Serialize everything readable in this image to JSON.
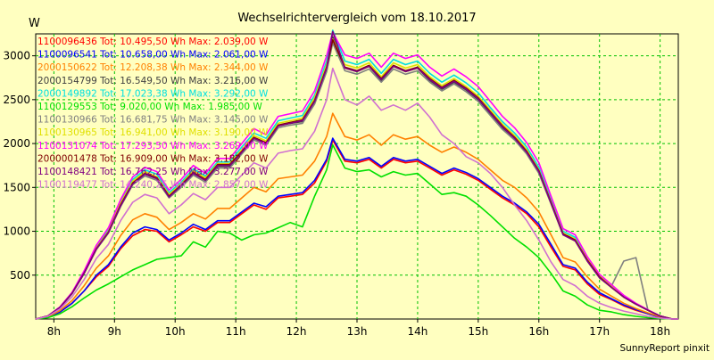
{
  "chart_data": {
    "type": "line",
    "title": "Wechselrichtervergleich vom 18.10.2017",
    "ylabel": "W",
    "xlabel": "",
    "footer": "SunnyReport pinxit",
    "ylim": [
      0,
      3250
    ],
    "xlim": [
      7.7,
      18.3
    ],
    "yticks": [
      500,
      1000,
      1500,
      2000,
      2500,
      3000
    ],
    "xticks": [
      8,
      9,
      10,
      11,
      12,
      13,
      14,
      15,
      16,
      17,
      18
    ],
    "xticklabels": [
      "8h",
      "9h",
      "10h",
      "11h",
      "12h",
      "13h",
      "14h",
      "15h",
      "16h",
      "17h",
      "18h"
    ],
    "grid": true,
    "legend_position": "top-left",
    "x": [
      7.7,
      7.9,
      8.1,
      8.3,
      8.5,
      8.7,
      8.9,
      9.1,
      9.3,
      9.5,
      9.7,
      9.9,
      10.1,
      10.3,
      10.5,
      10.7,
      10.9,
      11.1,
      11.3,
      11.5,
      11.7,
      11.9,
      12.1,
      12.3,
      12.5,
      12.6,
      12.8,
      13.0,
      13.2,
      13.4,
      13.6,
      13.8,
      14.0,
      14.2,
      14.4,
      14.6,
      14.8,
      15.0,
      15.2,
      15.4,
      15.6,
      15.8,
      16.0,
      16.2,
      16.4,
      16.6,
      16.8,
      17.0,
      17.2,
      17.4,
      17.6,
      17.8,
      18.0,
      18.2,
      18.3
    ],
    "series": [
      {
        "name": "1100096436 Tot: 10.495,50 Wh Max: 2.039,00 W",
        "color": "#ff0000",
        "values": [
          0,
          20,
          80,
          180,
          320,
          480,
          600,
          800,
          950,
          1020,
          1000,
          880,
          960,
          1050,
          1000,
          1100,
          1100,
          1200,
          1300,
          1250,
          1380,
          1400,
          1420,
          1550,
          1800,
          2039,
          1800,
          1780,
          1820,
          1720,
          1820,
          1780,
          1800,
          1720,
          1640,
          1700,
          1650,
          1580,
          1480,
          1380,
          1300,
          1200,
          1050,
          820,
          600,
          560,
          400,
          280,
          220,
          150,
          100,
          60,
          20,
          0,
          0
        ]
      },
      {
        "name": "1100096541 Tot: 10.658,00 Wh Max: 2.061,00 W",
        "color": "#0000ff",
        "values": [
          0,
          20,
          80,
          180,
          320,
          500,
          620,
          820,
          980,
          1050,
          1020,
          900,
          980,
          1080,
          1020,
          1120,
          1120,
          1220,
          1320,
          1280,
          1400,
          1420,
          1440,
          1580,
          1820,
          2061,
          1820,
          1800,
          1840,
          1740,
          1840,
          1800,
          1820,
          1740,
          1660,
          1720,
          1670,
          1600,
          1500,
          1400,
          1320,
          1220,
          1080,
          850,
          620,
          580,
          420,
          300,
          230,
          160,
          110,
          60,
          20,
          0,
          0
        ]
      },
      {
        "name": "2000150622 Tot: 12.208,38 Wh Max: 2.344,00 W",
        "color": "#ff8000",
        "values": [
          0,
          25,
          95,
          210,
          380,
          580,
          720,
          950,
          1130,
          1200,
          1160,
          1020,
          1100,
          1200,
          1140,
          1260,
          1260,
          1380,
          1500,
          1450,
          1600,
          1620,
          1640,
          1800,
          2080,
          2344,
          2080,
          2040,
          2100,
          1980,
          2100,
          2050,
          2080,
          1980,
          1900,
          1960,
          1900,
          1820,
          1700,
          1580,
          1500,
          1380,
          1220,
          960,
          700,
          650,
          480,
          340,
          260,
          180,
          120,
          70,
          25,
          0,
          0
        ]
      },
      {
        "name": "2000154799 Tot: 16.549,50 Wh Max: 3.216,00 W",
        "color": "#404040",
        "values": [
          0,
          35,
          130,
          290,
          520,
          800,
          990,
          1300,
          1550,
          1650,
          1600,
          1400,
          1520,
          1660,
          1580,
          1740,
          1740,
          1900,
          2060,
          2000,
          2200,
          2230,
          2250,
          2480,
          2860,
          3216,
          2860,
          2820,
          2880,
          2720,
          2880,
          2820,
          2860,
          2720,
          2620,
          2700,
          2610,
          2500,
          2340,
          2180,
          2060,
          1900,
          1680,
          1320,
          970,
          900,
          660,
          470,
          360,
          250,
          170,
          100,
          35,
          0,
          0
        ]
      },
      {
        "name": "2000149892 Tot: 17.023,38 Wh Max: 3.292,00 W",
        "color": "#00e0e0",
        "values": [
          0,
          35,
          135,
          300,
          540,
          830,
          1020,
          1340,
          1590,
          1700,
          1650,
          1440,
          1560,
          1710,
          1630,
          1790,
          1790,
          1960,
          2120,
          2060,
          2260,
          2290,
          2320,
          2550,
          2940,
          3292,
          2940,
          2900,
          2960,
          2800,
          2960,
          2900,
          2940,
          2800,
          2700,
          2780,
          2690,
          2580,
          2410,
          2250,
          2120,
          1960,
          1730,
          1360,
          1000,
          930,
          680,
          490,
          370,
          260,
          175,
          100,
          35,
          0,
          0
        ]
      },
      {
        "name": "1100129553 Tot: 9.020,00 Wh Max: 1.985,00 W",
        "color": "#00e000",
        "values": [
          0,
          15,
          60,
          140,
          240,
          330,
          400,
          480,
          560,
          620,
          680,
          700,
          720,
          880,
          820,
          1000,
          980,
          900,
          960,
          980,
          1040,
          1100,
          1050,
          1400,
          1700,
          1985,
          1720,
          1680,
          1700,
          1620,
          1680,
          1640,
          1660,
          1540,
          1420,
          1440,
          1400,
          1300,
          1180,
          1050,
          920,
          820,
          700,
          520,
          320,
          260,
          160,
          100,
          80,
          50,
          30,
          15,
          5,
          0,
          0
        ]
      },
      {
        "name": "1100130966 Tot: 16.681,75 Wh Max: 3.145,00 W",
        "color": "#808080",
        "values": [
          0,
          35,
          130,
          290,
          520,
          790,
          980,
          1280,
          1530,
          1630,
          1580,
          1380,
          1500,
          1640,
          1560,
          1720,
          1720,
          1880,
          2040,
          1980,
          2180,
          2210,
          2230,
          2450,
          2820,
          3145,
          2830,
          2790,
          2850,
          2700,
          2850,
          2790,
          2830,
          2700,
          2600,
          2680,
          2590,
          2480,
          2320,
          2160,
          2040,
          1880,
          1660,
          1310,
          960,
          890,
          660,
          480,
          380,
          660,
          700,
          100,
          35,
          0,
          0
        ]
      },
      {
        "name": "1100130965 Tot: 16.941,00 Wh Max: 3.190,00 W",
        "color": "#e0e000",
        "values": [
          0,
          35,
          135,
          300,
          530,
          810,
          1000,
          1320,
          1570,
          1680,
          1620,
          1420,
          1540,
          1690,
          1610,
          1770,
          1770,
          1930,
          2090,
          2030,
          2230,
          2260,
          2290,
          2520,
          2900,
          3190,
          2900,
          2860,
          2920,
          2760,
          2920,
          2860,
          2900,
          2760,
          2660,
          2740,
          2650,
          2540,
          2380,
          2220,
          2090,
          1930,
          1700,
          1340,
          980,
          910,
          680,
          490,
          370,
          260,
          175,
          100,
          35,
          0,
          0
        ]
      },
      {
        "name": "1100131074 Tot: 17.293,50 Wh Max: 3.269,00 W",
        "color": "#ff00ff",
        "values": [
          0,
          36,
          138,
          305,
          550,
          840,
          1040,
          1360,
          1620,
          1730,
          1680,
          1470,
          1590,
          1750,
          1660,
          1830,
          1830,
          2000,
          2170,
          2100,
          2310,
          2340,
          2370,
          2600,
          3000,
          3269,
          3010,
          2970,
          3030,
          2870,
          3030,
          2970,
          3010,
          2870,
          2770,
          2850,
          2760,
          2650,
          2480,
          2310,
          2180,
          2010,
          1780,
          1400,
          1030,
          960,
          710,
          510,
          390,
          270,
          180,
          105,
          36,
          0,
          0
        ]
      },
      {
        "name": "2000001478 Tot: 16.909,00 Wh Max: 3.182,00 W",
        "color": "#800000",
        "values": [
          0,
          34,
          132,
          295,
          525,
          800,
          990,
          1300,
          1550,
          1660,
          1610,
          1400,
          1530,
          1670,
          1590,
          1760,
          1760,
          1910,
          2070,
          2010,
          2210,
          2240,
          2270,
          2490,
          2870,
          3182,
          2870,
          2830,
          2890,
          2740,
          2890,
          2830,
          2870,
          2740,
          2640,
          2720,
          2630,
          2520,
          2360,
          2200,
          2070,
          1910,
          1690,
          1330,
          970,
          900,
          670,
          480,
          360,
          250,
          170,
          100,
          34,
          0,
          0
        ]
      },
      {
        "name": "1100148421 Tot: 16.762,25 Wh Max: 3.277,00 W",
        "color": "#800080",
        "values": [
          0,
          34,
          132,
          292,
          520,
          795,
          985,
          1290,
          1540,
          1650,
          1600,
          1390,
          1520,
          1660,
          1580,
          1750,
          1750,
          1900,
          2060,
          2000,
          2200,
          2230,
          2260,
          2480,
          2860,
          3277,
          2860,
          2820,
          2880,
          2730,
          2880,
          2820,
          2860,
          2730,
          2630,
          2710,
          2620,
          2510,
          2350,
          2190,
          2060,
          1900,
          1680,
          1320,
          960,
          890,
          660,
          470,
          360,
          250,
          170,
          100,
          34,
          0,
          0
        ]
      },
      {
        "name": "1100119477 Tot: 14.240,25 Wh Max: 2.857,00 W",
        "color": "#d070d0",
        "values": [
          0,
          30,
          115,
          255,
          450,
          690,
          850,
          1120,
          1330,
          1420,
          1380,
          1200,
          1300,
          1430,
          1360,
          1500,
          1500,
          1640,
          1780,
          1720,
          1890,
          1920,
          1940,
          2140,
          2500,
          2857,
          2500,
          2440,
          2540,
          2380,
          2440,
          2380,
          2460,
          2300,
          2100,
          2000,
          1850,
          1780,
          1660,
          1500,
          1300,
          1120,
          900,
          650,
          450,
          380,
          260,
          180,
          130,
          90,
          60,
          30,
          10,
          0,
          0
        ]
      }
    ]
  }
}
